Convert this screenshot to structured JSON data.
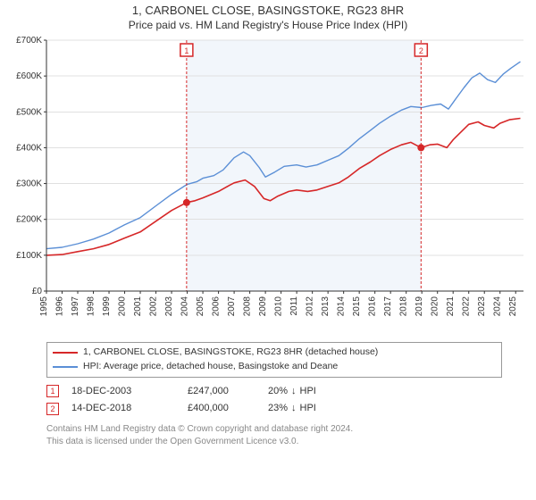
{
  "title_line1": "1, CARBONEL CLOSE, BASINGSTOKE, RG23 8HR",
  "title_line2": "Price paid vs. HM Land Registry's House Price Index (HPI)",
  "chart": {
    "type": "line",
    "background_color": "#ffffff",
    "shaded_region": {
      "x_start": 2003.96,
      "x_end": 2018.95,
      "fill": "#f2f6fb"
    },
    "xlim": [
      1995,
      2025.5
    ],
    "ylim": [
      0,
      700000
    ],
    "ytick_step": 100000,
    "ytick_labels": [
      "£0",
      "£100K",
      "£200K",
      "£300K",
      "£400K",
      "£500K",
      "£600K",
      "£700K"
    ],
    "xticks": [
      1995,
      1996,
      1997,
      1998,
      1999,
      2000,
      2001,
      2002,
      2003,
      2004,
      2005,
      2006,
      2007,
      2008,
      2009,
      2010,
      2011,
      2012,
      2013,
      2014,
      2015,
      2016,
      2017,
      2018,
      2019,
      2020,
      2021,
      2022,
      2023,
      2024,
      2025
    ],
    "grid_color": "#e0e0e0",
    "axis_color": "#333333",
    "tick_fontsize": 10,
    "series": [
      {
        "name": "property",
        "label": "1, CARBONEL CLOSE, BASINGSTOKE, RG23 8HR (detached house)",
        "color": "#d62728",
        "line_width": 1.6,
        "data": [
          [
            1995,
            100000
          ],
          [
            1996,
            102000
          ],
          [
            1997,
            110000
          ],
          [
            1998,
            118000
          ],
          [
            1999,
            130000
          ],
          [
            2000,
            148000
          ],
          [
            2001,
            165000
          ],
          [
            2002,
            195000
          ],
          [
            2003,
            225000
          ],
          [
            2003.96,
            247000
          ],
          [
            2004.5,
            252000
          ],
          [
            2005,
            260000
          ],
          [
            2006,
            278000
          ],
          [
            2006.7,
            295000
          ],
          [
            2007,
            302000
          ],
          [
            2007.7,
            310000
          ],
          [
            2008.3,
            292000
          ],
          [
            2008.9,
            258000
          ],
          [
            2009.3,
            252000
          ],
          [
            2009.8,
            265000
          ],
          [
            2010.5,
            278000
          ],
          [
            2011,
            282000
          ],
          [
            2011.7,
            278000
          ],
          [
            2012.3,
            282000
          ],
          [
            2013,
            292000
          ],
          [
            2013.7,
            302000
          ],
          [
            2014.3,
            318000
          ],
          [
            2015,
            342000
          ],
          [
            2015.7,
            360000
          ],
          [
            2016.3,
            378000
          ],
          [
            2017,
            395000
          ],
          [
            2017.7,
            408000
          ],
          [
            2018.3,
            415000
          ],
          [
            2018.95,
            400000
          ],
          [
            2019.5,
            408000
          ],
          [
            2020,
            410000
          ],
          [
            2020.6,
            400000
          ],
          [
            2021,
            422000
          ],
          [
            2021.6,
            448000
          ],
          [
            2022,
            465000
          ],
          [
            2022.6,
            472000
          ],
          [
            2023,
            462000
          ],
          [
            2023.6,
            455000
          ],
          [
            2024,
            468000
          ],
          [
            2024.6,
            478000
          ],
          [
            2025.3,
            482000
          ]
        ]
      },
      {
        "name": "hpi",
        "label": "HPI: Average price, detached house, Basingstoke and Deane",
        "color": "#5b8fd6",
        "line_width": 1.4,
        "data": [
          [
            1995,
            118000
          ],
          [
            1996,
            122000
          ],
          [
            1997,
            132000
          ],
          [
            1998,
            145000
          ],
          [
            1999,
            162000
          ],
          [
            2000,
            185000
          ],
          [
            2001,
            205000
          ],
          [
            2002,
            238000
          ],
          [
            2003,
            270000
          ],
          [
            2004,
            298000
          ],
          [
            2004.6,
            305000
          ],
          [
            2005,
            315000
          ],
          [
            2005.7,
            322000
          ],
          [
            2006.3,
            338000
          ],
          [
            2007,
            372000
          ],
          [
            2007.6,
            388000
          ],
          [
            2008,
            378000
          ],
          [
            2008.6,
            345000
          ],
          [
            2009,
            318000
          ],
          [
            2009.6,
            332000
          ],
          [
            2010.2,
            348000
          ],
          [
            2011,
            352000
          ],
          [
            2011.6,
            346000
          ],
          [
            2012.3,
            352000
          ],
          [
            2013,
            365000
          ],
          [
            2013.7,
            378000
          ],
          [
            2014.3,
            398000
          ],
          [
            2015,
            425000
          ],
          [
            2015.7,
            448000
          ],
          [
            2016.3,
            468000
          ],
          [
            2017,
            488000
          ],
          [
            2017.7,
            505000
          ],
          [
            2018.3,
            515000
          ],
          [
            2019,
            512000
          ],
          [
            2019.6,
            518000
          ],
          [
            2020.2,
            522000
          ],
          [
            2020.7,
            508000
          ],
          [
            2021.2,
            538000
          ],
          [
            2021.7,
            568000
          ],
          [
            2022.2,
            595000
          ],
          [
            2022.7,
            608000
          ],
          [
            2023.2,
            590000
          ],
          [
            2023.7,
            582000
          ],
          [
            2024.2,
            605000
          ],
          [
            2024.7,
            622000
          ],
          [
            2025.3,
            640000
          ]
        ]
      }
    ],
    "sale_markers": [
      {
        "n": "1",
        "x": 2003.96,
        "y": 247000,
        "date": "18-DEC-2003",
        "price": "£247,000",
        "diff_pct": "20%",
        "diff_dir": "↓",
        "diff_label": "HPI"
      },
      {
        "n": "2",
        "x": 2018.95,
        "y": 400000,
        "date": "14-DEC-2018",
        "price": "£400,000",
        "diff_pct": "23%",
        "diff_dir": "↓",
        "diff_label": "HPI"
      }
    ],
    "marker_style": {
      "dot_fill": "#d62728",
      "dot_radius": 4,
      "vline_color": "#d62728",
      "vline_dash": "3,2",
      "box_border": "#d62728",
      "box_fill": "#ffffff",
      "box_text_color": "#d62728",
      "box_fontsize": 9
    }
  },
  "legend": {
    "border_color": "#999999",
    "rows": [
      {
        "color": "#d62728",
        "label": "1, CARBONEL CLOSE, BASINGSTOKE, RG23 8HR (detached house)"
      },
      {
        "color": "#5b8fd6",
        "label": "HPI: Average price, detached house, Basingstoke and Deane"
      }
    ]
  },
  "footer_line1": "Contains HM Land Registry data © Crown copyright and database right 2024.",
  "footer_line2": "This data is licensed under the Open Government Licence v3.0."
}
